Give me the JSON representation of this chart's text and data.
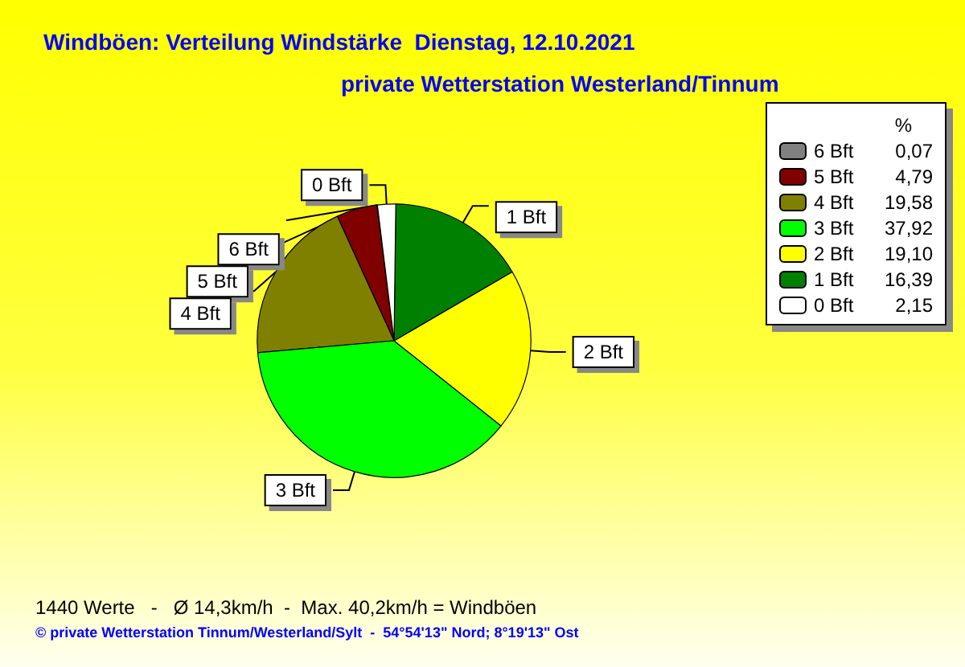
{
  "chart_data": {
    "type": "pie",
    "title": "Windböen: Verteilung Windstärke  Dienstag, 12.10.2021",
    "subtitle": "private Wetterstation Westerland/Tinnum",
    "categories": [
      "6 Bft",
      "5 Bft",
      "4 Bft",
      "3 Bft",
      "2 Bft",
      "1 Bft",
      "0 Bft"
    ],
    "values": [
      0.07,
      4.79,
      19.58,
      37.92,
      19.1,
      16.39,
      2.15
    ],
    "value_labels": [
      "0,07",
      "4,79",
      "19,58",
      "37,92",
      "19,10",
      "16,39",
      "2,15"
    ],
    "colors": [
      "#808080",
      "#800000",
      "#808000",
      "#00ff00",
      "#ffff00",
      "#008000",
      "#ffffff"
    ],
    "legend": "top right",
    "legend_title": "%",
    "annotations": [
      "1440 Werte   -   Ø 14,3km/h  -  Max. 40,2km/h = Windböen",
      "© private Wetterstation Tinnum/Westerland/Sylt  -  54°54'13\" Nord; 8°19'13\" Ost"
    ]
  }
}
